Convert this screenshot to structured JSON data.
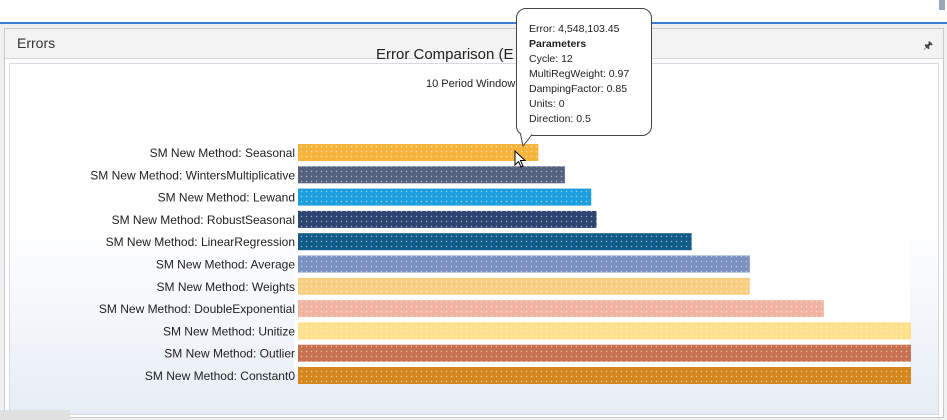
{
  "panel": {
    "title": "Errors"
  },
  "chart_data": {
    "type": "bar",
    "orientation": "horizontal",
    "title": "Error Comparison (E",
    "subtitle": "10 Period Window",
    "xlim": [
      0,
      11600000
    ],
    "categories": [
      "SM New Method: Seasonal",
      "SM New Method: WintersMultiplicative",
      "SM New Method: Lewand",
      "SM New Method: RobustSeasonal",
      "SM New Method: LinearRegression",
      "SM New Method: Average",
      "SM New Method: Weights",
      "SM New Method: DoubleExponential",
      "SM New Method: Unitize",
      "SM New Method: Outlier",
      "SM New Method: Constant0"
    ],
    "values": [
      4548103.45,
      5050000,
      5550000,
      5650000,
      7450000,
      8550000,
      8550000,
      9950000,
      11600000,
      11600000,
      11600000
    ],
    "colors": [
      "#f7b43c",
      "#55627f",
      "#1e9ede",
      "#2d4470",
      "#115b88",
      "#7b91c2",
      "#f8cf82",
      "#f1b4a2",
      "#fde08b",
      "#c87150",
      "#d5861e"
    ],
    "grid": false,
    "legend": "none"
  },
  "tooltip": {
    "error": "Error: 4,548,103.45",
    "heading": "Parameters",
    "lines": [
      "Cycle: 12",
      "MultiRegWeight: 0.97",
      "DampingFactor: 0.85",
      "Units: 0",
      "Direction: 0.5"
    ]
  },
  "icons": {
    "pin": "pin-icon",
    "cursor": "mouse-cursor-icon"
  }
}
